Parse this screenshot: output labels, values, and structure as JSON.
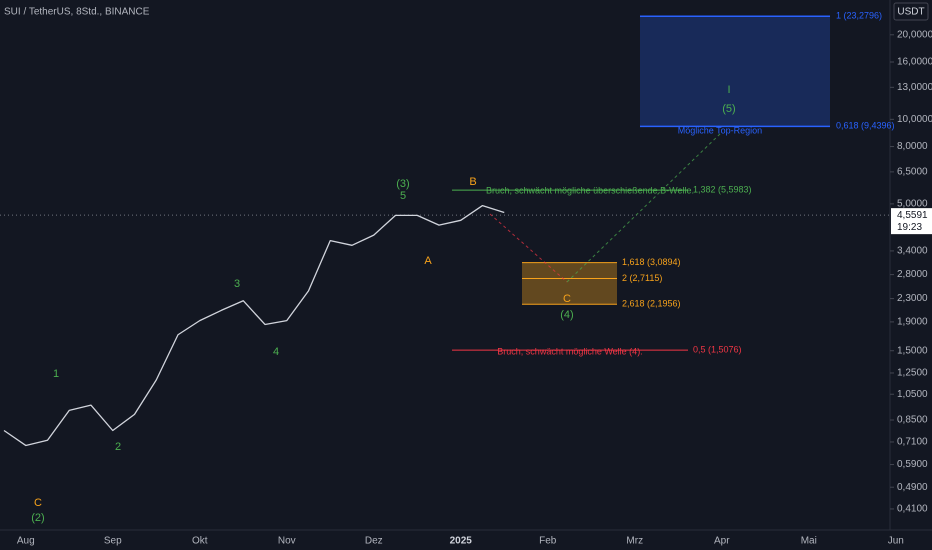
{
  "chart_data": {
    "type": "line",
    "title": "SUI / TetherUS, 8Std., BINANCE",
    "currency": "USDT",
    "log_scale": true,
    "ylim": [
      0.345,
      26.6
    ],
    "yticks": [
      {
        "value": 20,
        "label": "20,0000"
      },
      {
        "value": 16,
        "label": "16,0000"
      },
      {
        "value": 13,
        "label": "13,0000"
      },
      {
        "value": 10,
        "label": "10,0000"
      },
      {
        "value": 8,
        "label": "8,0000"
      },
      {
        "value": 6.5,
        "label": "6,5000"
      },
      {
        "value": 5,
        "label": "5,0000"
      },
      {
        "value": 3.4,
        "label": "3,4000"
      },
      {
        "value": 2.8,
        "label": "2,8000"
      },
      {
        "value": 2.3,
        "label": "2,3000"
      },
      {
        "value": 1.9,
        "label": "1,9000"
      },
      {
        "value": 1.5,
        "label": "1,5000"
      },
      {
        "value": 1.25,
        "label": "1,2500"
      },
      {
        "value": 1.05,
        "label": "1,0500"
      },
      {
        "value": 0.85,
        "label": "0,8500"
      },
      {
        "value": 0.71,
        "label": "0,7100"
      },
      {
        "value": 0.59,
        "label": "0,5900"
      },
      {
        "value": 0.49,
        "label": "0,4900"
      },
      {
        "value": 0.41,
        "label": "0,4100"
      }
    ],
    "categories": [
      null,
      "Aug",
      null,
      null,
      null,
      "Sep",
      null,
      null,
      null,
      "Okt",
      null,
      null,
      null,
      "Nov",
      null,
      null,
      null,
      "Dez",
      null,
      null,
      null,
      "2025",
      null,
      null,
      null,
      "Feb",
      null,
      null,
      null,
      "Mrz",
      null,
      null,
      null,
      "Apr",
      null,
      null,
      null,
      "Mai",
      null,
      null,
      null,
      "Jun"
    ],
    "series": [
      {
        "color": "#d1d4dc",
        "values": [
          0.78,
          0.69,
          0.72,
          0.92,
          0.96,
          0.78,
          0.89,
          1.18,
          1.71,
          1.92,
          2.09,
          2.26,
          1.86,
          1.92,
          2.45,
          3.7,
          3.56,
          3.87,
          4.55,
          4.55,
          4.2,
          4.37,
          4.93,
          4.66,
          null,
          null,
          null,
          null,
          null,
          null,
          null,
          null,
          null,
          null,
          null,
          null,
          null,
          null,
          null,
          null,
          null,
          null
        ]
      }
    ],
    "last_price": {
      "value": 4.5591,
      "label": "4,5591"
    },
    "countdown": "19:23",
    "levels": [
      {
        "value": 23.2796,
        "label": "1 (23,2796)",
        "color": "#2962ff"
      },
      {
        "value": 9.4396,
        "label": "0,618 (9,4396)",
        "color": "#2962ff"
      },
      {
        "value": 5.5983,
        "label": "1,382 (5,5983)",
        "color": "#4caf50"
      },
      {
        "value": 3.0894,
        "label": "1,618 (3,0894)",
        "color": "#f7a21b"
      },
      {
        "value": 2.7115,
        "label": "2 (2,7115)",
        "color": "#f7a21b"
      },
      {
        "value": 2.1956,
        "label": "2,618 (2,1956)",
        "color": "#f7a21b"
      },
      {
        "value": 1.5076,
        "label": "0,5 (1,5076)",
        "color": "#f23645"
      }
    ],
    "annotations": {
      "top_region": "Mögliche Top-Region",
      "b_break": "Bruch, schwächt mögliche überschießende B-Welle.",
      "w4_break": "Bruch, schwächt mögliche Welle (4)."
    },
    "waves": [
      "C",
      "(2)",
      "1",
      "2",
      "3",
      "4",
      "(3)",
      "5",
      "A",
      "B",
      "C",
      "(4)",
      "I",
      "(5)"
    ]
  }
}
